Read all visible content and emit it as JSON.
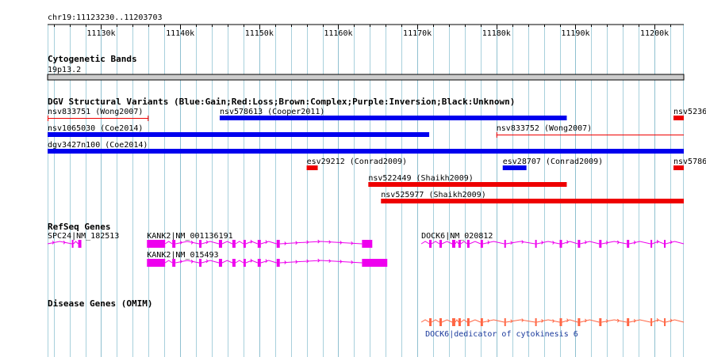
{
  "region": {
    "label": "chr19:11123230..11203703",
    "start": 11123230,
    "end": 11203703
  },
  "ruler": {
    "ticks": [
      11130000,
      11140000,
      11150000,
      11160000,
      11170000,
      11180000,
      11190000,
      11200000
    ],
    "tick_labels": [
      "11130k",
      "11140k",
      "11150k",
      "11160k",
      "11170k",
      "11180k",
      "11190k",
      "11200k"
    ]
  },
  "colors": {
    "gain": "#0000ee",
    "loss": "#ee0000",
    "refseq": "#ee00ee",
    "omim": "#ff6644",
    "grid": "#a8d0dc",
    "ideogram": "#cccccc",
    "omim_label": "#1a3a9c"
  },
  "tracks": {
    "cyto": {
      "title": "Cytogenetic Bands",
      "band": "19p13.2"
    },
    "dgv": {
      "title": "DGV Structural Variants (Blue:Gain;Red:Loss;Brown:Complex;Purple:Inversion;Black:Unknown)",
      "features": [
        {
          "label": "nsv833751 (Wong2007)",
          "start": 11123230,
          "end": 11136000,
          "row": 0,
          "type": "loss",
          "style": "thin"
        },
        {
          "label": "nsv578613 (Cooper2011)",
          "start": 11145000,
          "end": 11188900,
          "row": 0,
          "type": "gain",
          "style": "thick"
        },
        {
          "label": "nsv5236",
          "start": 11202400,
          "end": 11203703,
          "row": 0,
          "type": "loss",
          "style": "thick"
        },
        {
          "label": "nsv1065030 (Coe2014)",
          "start": 11123230,
          "end": 11171500,
          "row": 1,
          "type": "gain",
          "style": "thick"
        },
        {
          "label": "nsv833752 (Wong2007)",
          "start": 11180000,
          "end": 11203703,
          "row": 1,
          "type": "loss",
          "style": "thin"
        },
        {
          "label": "dgv3427n100 (Coe2014)",
          "start": 11123230,
          "end": 11203703,
          "row": 2,
          "type": "gain",
          "style": "thick"
        },
        {
          "label": "esv29212 (Conrad2009)",
          "start": 11156000,
          "end": 11157400,
          "row": 3,
          "type": "loss",
          "style": "thick"
        },
        {
          "label": "esv28707 (Conrad2009)",
          "start": 11180800,
          "end": 11183800,
          "row": 3,
          "type": "gain",
          "style": "thick"
        },
        {
          "label": "nsv5786",
          "start": 11202400,
          "end": 11203703,
          "row": 3,
          "type": "loss",
          "style": "thick"
        },
        {
          "label": "nsv522449 (Shaikh2009)",
          "start": 11163800,
          "end": 11188900,
          "row": 4,
          "type": "loss",
          "style": "thick"
        },
        {
          "label": "nsv525977 (Shaikh2009)",
          "start": 11165400,
          "end": 11203703,
          "row": 5,
          "type": "loss",
          "style": "thick"
        }
      ]
    },
    "refseq": {
      "title": "RefSeq Genes",
      "genes": [
        {
          "label": "SPC24|NM_182513",
          "start": 11123230,
          "end": 11127500,
          "row": 0,
          "exons": [
            [
              11126300,
              11126500
            ],
            [
              11127100,
              11127500
            ]
          ]
        },
        {
          "label": "KANK2|NM_001136191",
          "start": 11135800,
          "end": 11164300,
          "row": 0,
          "exons": [
            [
              11135800,
              11138100
            ],
            [
              11139000,
              11139400
            ],
            [
              11142400,
              11142700
            ],
            [
              11144900,
              11145300
            ],
            [
              11146600,
              11147000
            ],
            [
              11148000,
              11148300
            ],
            [
              11149800,
              11150200
            ],
            [
              11152200,
              11152600
            ],
            [
              11163000,
              11164300
            ]
          ]
        },
        {
          "label": "KANK2|NM_015493",
          "start": 11135800,
          "end": 11166200,
          "row": 1,
          "exons": [
            [
              11135800,
              11138100
            ],
            [
              11139000,
              11139400
            ],
            [
              11142400,
              11142700
            ],
            [
              11144900,
              11145300
            ],
            [
              11146600,
              11147000
            ],
            [
              11148000,
              11148300
            ],
            [
              11149800,
              11150200
            ],
            [
              11152200,
              11152600
            ],
            [
              11163000,
              11166200
            ]
          ]
        },
        {
          "label": "DOCK6|NM_020812",
          "start": 11170500,
          "end": 11203703,
          "row": 0,
          "exons": [
            [
              11171500,
              11171800
            ],
            [
              11172800,
              11173100
            ],
            [
              11174400,
              11174800
            ],
            [
              11175200,
              11175500
            ],
            [
              11176300,
              11176600
            ],
            [
              11178000,
              11178300
            ],
            [
              11181000,
              11181200
            ],
            [
              11184900,
              11185100
            ],
            [
              11188000,
              11188300
            ],
            [
              11190300,
              11190600
            ],
            [
              11193000,
              11193300
            ],
            [
              11196500,
              11196800
            ],
            [
              11199500,
              11199700
            ],
            [
              11201200,
              11201400
            ]
          ]
        }
      ]
    },
    "omim": {
      "title": "Disease Genes (OMIM)",
      "genes": [
        {
          "label": "DOCK6|dedicator of cytokinesis 6",
          "start": 11170500,
          "end": 11203703,
          "exons": [
            [
              11171500,
              11171800
            ],
            [
              11172800,
              11173100
            ],
            [
              11174400,
              11174800
            ],
            [
              11175200,
              11175500
            ],
            [
              11176300,
              11176600
            ],
            [
              11178000,
              11178300
            ],
            [
              11181000,
              11181200
            ],
            [
              11184900,
              11185100
            ],
            [
              11188000,
              11188300
            ],
            [
              11190300,
              11190600
            ],
            [
              11193000,
              11193300
            ],
            [
              11196500,
              11196800
            ],
            [
              11199500,
              11199700
            ],
            [
              11201200,
              11201400
            ]
          ]
        }
      ]
    }
  }
}
